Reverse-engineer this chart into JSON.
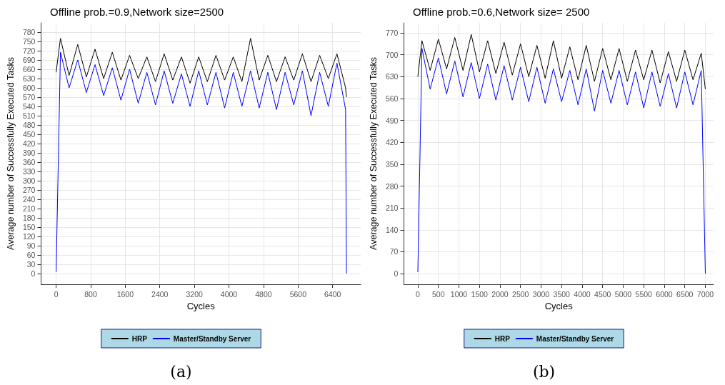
{
  "chart_data": [
    {
      "type": "line",
      "title": "Offline prob.=0.9,Network size=2500",
      "xlabel": "Cycles",
      "ylabel": "Average number of Successfully Executed Tasks",
      "annotations": [
        "(a)"
      ],
      "x": [
        0,
        100,
        300,
        500,
        700,
        900,
        1100,
        1300,
        1500,
        1700,
        1900,
        2100,
        2300,
        2500,
        2700,
        2900,
        3100,
        3300,
        3500,
        3700,
        3900,
        4100,
        4300,
        4500,
        4700,
        4900,
        5100,
        5300,
        5500,
        5700,
        5900,
        6100,
        6300,
        6500,
        6700,
        6720
      ],
      "series": [
        {
          "name": "HRP",
          "color": "#000000",
          "values": [
            650,
            760,
            640,
            740,
            635,
            725,
            630,
            715,
            625,
            705,
            630,
            700,
            620,
            710,
            625,
            700,
            615,
            700,
            620,
            705,
            625,
            700,
            620,
            760,
            625,
            705,
            620,
            700,
            625,
            710,
            620,
            705,
            630,
            710,
            600,
            570
          ]
        },
        {
          "name": "Master/Standby Server",
          "color": "#0000ff",
          "values": [
            5,
            715,
            600,
            690,
            585,
            675,
            575,
            665,
            560,
            660,
            550,
            650,
            545,
            655,
            550,
            645,
            540,
            655,
            545,
            650,
            535,
            650,
            540,
            655,
            535,
            650,
            530,
            650,
            545,
            655,
            510,
            650,
            540,
            680,
            530,
            0
          ]
        }
      ],
      "xlim": [
        -350,
        7050
      ],
      "xticks": [
        0,
        800,
        1600,
        2400,
        3200,
        4000,
        4800,
        5600,
        6400
      ],
      "ylim": [
        -35,
        810
      ],
      "yticks": [
        0,
        30,
        60,
        90,
        120,
        150,
        180,
        210,
        240,
        270,
        300,
        330,
        360,
        390,
        420,
        450,
        480,
        510,
        540,
        570,
        600,
        630,
        660,
        690,
        720,
        750,
        780
      ],
      "grid": true,
      "legend": "bottom",
      "marker": "none",
      "line_style": "solid"
    },
    {
      "type": "line",
      "title": "Offline prob.=0.6,Network size= 2500",
      "xlabel": "Cycles",
      "ylabel": "Average number of Successfully Executed Tasks",
      "annotations": [
        "(b)"
      ],
      "x": [
        0,
        100,
        300,
        500,
        700,
        900,
        1100,
        1300,
        1500,
        1700,
        1900,
        2100,
        2300,
        2500,
        2700,
        2900,
        3100,
        3300,
        3500,
        3700,
        3900,
        4100,
        4300,
        4500,
        4700,
        4900,
        5100,
        5300,
        5500,
        5700,
        5900,
        6100,
        6300,
        6500,
        6700,
        6900,
        7000
      ],
      "series": [
        {
          "name": "HRP",
          "color": "#000000",
          "values": [
            630,
            745,
            650,
            750,
            655,
            755,
            650,
            765,
            645,
            745,
            640,
            740,
            635,
            735,
            630,
            730,
            625,
            745,
            625,
            725,
            620,
            730,
            615,
            720,
            620,
            720,
            615,
            715,
            620,
            715,
            610,
            710,
            615,
            715,
            620,
            705,
            590
          ]
        },
        {
          "name": "Master/Standby Server",
          "color": "#0000ff",
          "values": [
            5,
            720,
            590,
            690,
            575,
            680,
            565,
            675,
            560,
            670,
            555,
            665,
            555,
            660,
            550,
            660,
            545,
            655,
            550,
            650,
            540,
            655,
            520,
            650,
            545,
            650,
            540,
            645,
            530,
            645,
            535,
            640,
            530,
            645,
            540,
            650,
            0
          ]
        }
      ],
      "xlim": [
        -340,
        7200
      ],
      "xticks": [
        0,
        500,
        1000,
        1500,
        2000,
        2500,
        3000,
        3500,
        4000,
        4500,
        5000,
        5500,
        6000,
        6500,
        7000
      ],
      "ylim": [
        -34,
        802
      ],
      "yticks": [
        0,
        70,
        140,
        210,
        280,
        350,
        420,
        490,
        560,
        630,
        700,
        770
      ],
      "grid": true,
      "legend": "bottom",
      "marker": "none",
      "line_style": "solid"
    }
  ]
}
